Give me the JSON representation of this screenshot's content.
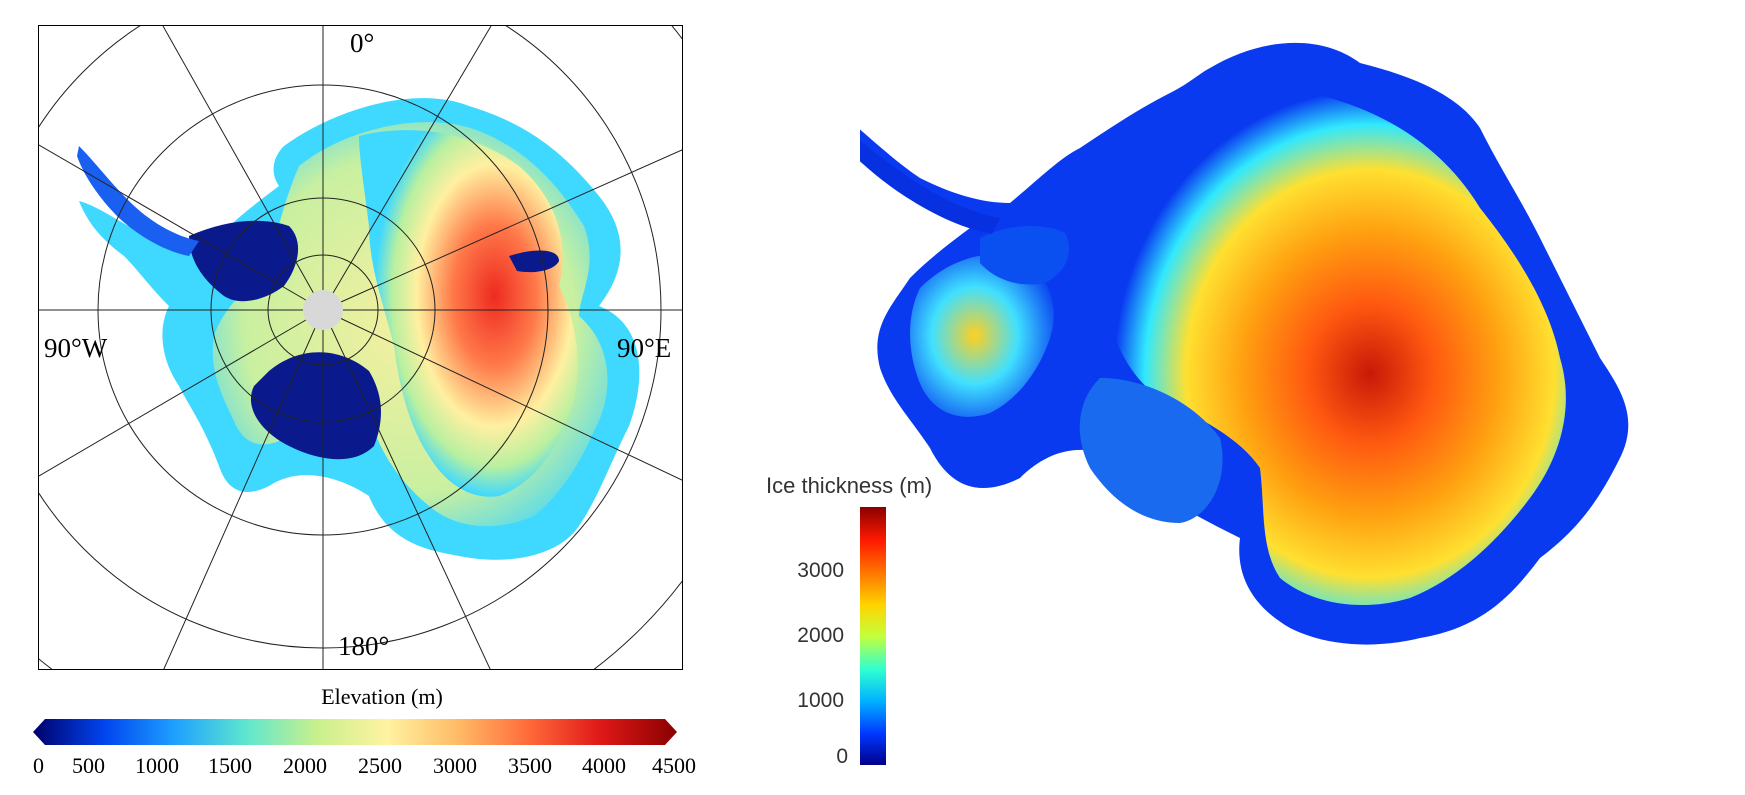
{
  "left_map": {
    "labels": {
      "north": "0°",
      "south": "180°",
      "west": "90°W",
      "east": "90°E"
    },
    "colorbar": {
      "title": "Elevation (m)",
      "ticks": [
        "0",
        "500",
        "1000",
        "1500",
        "2000",
        "2500",
        "3000",
        "3500",
        "4000",
        "4500"
      ],
      "colors": [
        "#00006a",
        "#0044ee",
        "#1ea0ff",
        "#5ee6d0",
        "#c8f08c",
        "#fff2a0",
        "#ffbb66",
        "#ff6a3a",
        "#e01818",
        "#8a0000"
      ]
    },
    "land_colors": {
      "ice_shelf": "#0a1a8c",
      "coast": "#3fd8ff",
      "mid": "#f5f0a0",
      "high": "#ff7a4a",
      "highest": "#f03a28",
      "pole_hole": "#d8d8d8"
    }
  },
  "right_map": {
    "colorbar": {
      "title": "Ice thickness (m)",
      "ticks": [
        "0",
        "1000",
        "2000",
        "3000"
      ],
      "colors": [
        "#00008a",
        "#0036ff",
        "#00b4ff",
        "#30ffd0",
        "#c4ff3a",
        "#ffd400",
        "#ff7200",
        "#ff1a00",
        "#8a0000"
      ]
    },
    "land_colors": {
      "thin": "#0636f0",
      "coast": "#1ec8ff",
      "mid": "#ffd820",
      "thick": "#ff7a10",
      "thickest": "#d81a08"
    }
  }
}
